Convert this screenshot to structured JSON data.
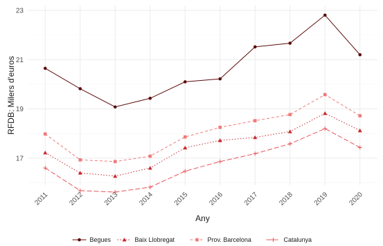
{
  "chart_data": {
    "type": "line",
    "title": "",
    "xlabel": "Any",
    "ylabel": "RFDB: Milers d'euros",
    "x": [
      "2011",
      "2012",
      "2013",
      "2014",
      "2015",
      "2016",
      "2017",
      "2018",
      "2019",
      "2020"
    ],
    "yticks": [
      17,
      19,
      21,
      23
    ],
    "ylim": [
      15.9,
      23.2
    ],
    "grid": true,
    "legend_position": "bottom",
    "series": [
      {
        "name": "Begues",
        "values": [
          20.65,
          19.82,
          19.08,
          19.43,
          20.1,
          20.22,
          21.52,
          21.67,
          22.81,
          21.2
        ],
        "color": "#5c0a0a",
        "line_style": "solid",
        "marker": "circle"
      },
      {
        "name": "Baix Llobregat",
        "values": [
          17.22,
          16.4,
          16.27,
          16.6,
          17.42,
          17.72,
          17.84,
          18.08,
          18.82,
          18.12
        ],
        "color": "#c8282d",
        "line_style": "dotted",
        "marker": "triangle"
      },
      {
        "name": "Prov. Barcelona",
        "values": [
          17.98,
          16.93,
          16.86,
          17.08,
          17.86,
          18.25,
          18.52,
          18.77,
          19.58,
          18.72
        ],
        "color": "#f0797a",
        "line_style": "dashed",
        "marker": "square"
      },
      {
        "name": "Catalunya",
        "values": [
          16.6,
          15.68,
          15.62,
          15.82,
          16.47,
          16.86,
          17.18,
          17.58,
          18.2,
          17.43
        ],
        "color": "#e8545a",
        "line_style": "longdash",
        "marker": "plus"
      }
    ]
  }
}
